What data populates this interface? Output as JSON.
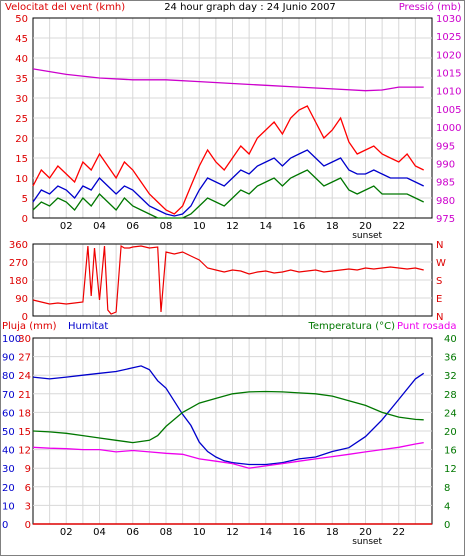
{
  "header": {
    "left_title": "Velocitat del vent (kmh)",
    "center_title": "24 hour graph day : 24 Junio 2007",
    "right_title": "Pressió (mb)"
  },
  "x_axis": {
    "tick_labels": [
      "02",
      "04",
      "06",
      "08",
      "10",
      "12",
      "14",
      "16",
      "18",
      "20",
      "22"
    ],
    "sunset_label": "sunset"
  },
  "colors": {
    "wind_gust": "#ff0000",
    "wind_avg": "#0000cc",
    "wind_min": "#007700",
    "pressure": "#cc00cc",
    "direction": "#ee0000",
    "humidity": "#0000cc",
    "temperature": "#007700",
    "dewpoint": "#ee00ee",
    "rain": "#dd0000",
    "grid": "#d8d8d8",
    "frame": "#000000"
  },
  "chart_data": [
    {
      "type": "line",
      "title": "24 hour graph day : 24 Junio 2007",
      "ylabel": "Velocitat del vent (kmh)",
      "y2label": "Pressió (mb)",
      "x_range": [
        0,
        24
      ],
      "ylim": [
        0,
        50
      ],
      "y_ticks": [
        0,
        5,
        10,
        15,
        20,
        25,
        30,
        35,
        40,
        45,
        50
      ],
      "y2lim": [
        975,
        1030
      ],
      "y2_ticks": [
        975,
        980,
        985,
        990,
        995,
        1000,
        1005,
        1010,
        1015,
        1020,
        1025,
        1030
      ],
      "grid": true,
      "series": [
        {
          "key": "gust",
          "axis": "left",
          "x": [
            0,
            0.5,
            1,
            1.5,
            2,
            2.5,
            3,
            3.5,
            4,
            4.5,
            5,
            5.5,
            6,
            6.5,
            7,
            7.5,
            8,
            8.5,
            9,
            9.5,
            10,
            10.5,
            11,
            11.5,
            12,
            12.5,
            13,
            13.5,
            14,
            14.5,
            15,
            15.5,
            16,
            16.5,
            17,
            17.5,
            18,
            18.5,
            19,
            19.5,
            20,
            20.5,
            21,
            21.5,
            22,
            22.5,
            23,
            23.5
          ],
          "values": [
            8,
            12,
            10,
            13,
            11,
            9,
            14,
            12,
            16,
            13,
            10,
            14,
            12,
            9,
            6,
            4,
            2,
            1,
            3,
            8,
            13,
            17,
            14,
            12,
            15,
            18,
            16,
            20,
            22,
            24,
            21,
            25,
            27,
            28,
            24,
            20,
            22,
            25,
            19,
            16,
            17,
            18,
            16,
            15,
            14,
            16,
            13,
            12
          ]
        },
        {
          "key": "average",
          "axis": "left",
          "x": [
            0,
            0.5,
            1,
            1.5,
            2,
            2.5,
            3,
            3.5,
            4,
            4.5,
            5,
            5.5,
            6,
            6.5,
            7,
            7.5,
            8,
            8.5,
            9,
            9.5,
            10,
            10.5,
            11,
            11.5,
            12,
            12.5,
            13,
            13.5,
            14,
            14.5,
            15,
            15.5,
            16,
            16.5,
            17,
            17.5,
            18,
            18.5,
            19,
            19.5,
            20,
            20.5,
            21,
            21.5,
            22,
            22.5,
            23,
            23.5
          ],
          "values": [
            4,
            7,
            6,
            8,
            7,
            5,
            8,
            7,
            10,
            8,
            6,
            8,
            7,
            5,
            3,
            2,
            1,
            0.5,
            1,
            3,
            7,
            10,
            9,
            8,
            10,
            12,
            11,
            13,
            14,
            15,
            13,
            15,
            16,
            17,
            15,
            13,
            14,
            15,
            12,
            11,
            11,
            12,
            11,
            10,
            10,
            10,
            9,
            8
          ]
        },
        {
          "key": "minimum",
          "axis": "left",
          "x": [
            0,
            0.5,
            1,
            1.5,
            2,
            2.5,
            3,
            3.5,
            4,
            4.5,
            5,
            5.5,
            6,
            6.5,
            7,
            7.5,
            8,
            8.5,
            9,
            9.5,
            10,
            10.5,
            11,
            11.5,
            12,
            12.5,
            13,
            13.5,
            14,
            14.5,
            15,
            15.5,
            16,
            16.5,
            17,
            17.5,
            18,
            18.5,
            19,
            19.5,
            20,
            20.5,
            21,
            21.5,
            22,
            22.5,
            23,
            23.5
          ],
          "values": [
            2,
            4,
            3,
            5,
            4,
            2,
            5,
            3,
            6,
            4,
            2,
            5,
            3,
            2,
            1,
            0,
            0,
            0,
            0,
            1,
            3,
            5,
            4,
            3,
            5,
            7,
            6,
            8,
            9,
            10,
            8,
            10,
            11,
            12,
            10,
            8,
            9,
            10,
            7,
            6,
            7,
            8,
            6,
            6,
            6,
            6,
            5,
            4
          ]
        },
        {
          "key": "pressure",
          "axis": "right",
          "x": [
            0,
            2,
            4,
            6,
            8,
            10,
            12,
            14,
            16,
            18,
            20,
            21,
            22,
            23.5
          ],
          "values": [
            1016,
            1014.5,
            1013.5,
            1013,
            1013,
            1012.5,
            1012,
            1011.5,
            1011,
            1010.5,
            1010,
            1010.2,
            1011,
            1011
          ]
        }
      ],
      "annotations": [
        "sunset"
      ]
    },
    {
      "type": "line",
      "x_range": [
        0,
        24
      ],
      "ylim": [
        0,
        360
      ],
      "y_ticks": [
        0,
        90,
        180,
        270,
        360
      ],
      "y2_labels": [
        "N",
        "W",
        "S",
        "E",
        "N"
      ],
      "series": [
        {
          "key": "direction",
          "x": [
            0,
            0.5,
            1,
            1.5,
            2,
            2.5,
            3,
            3.3,
            3.5,
            3.7,
            4,
            4.3,
            4.5,
            4.7,
            5,
            5.3,
            5.5,
            5.8,
            6,
            6.5,
            7,
            7.5,
            7.7,
            8,
            8.5,
            9,
            9.5,
            10,
            10.5,
            11,
            11.5,
            12,
            12.5,
            13,
            13.5,
            14,
            14.5,
            15,
            15.5,
            16,
            16.5,
            17,
            17.5,
            18,
            18.5,
            19,
            19.5,
            20,
            20.5,
            21,
            21.5,
            22,
            22.5,
            23,
            23.5
          ],
          "values": [
            80,
            70,
            60,
            65,
            60,
            65,
            70,
            350,
            100,
            340,
            80,
            350,
            30,
            10,
            20,
            350,
            340,
            340,
            345,
            350,
            340,
            345,
            20,
            320,
            310,
            320,
            300,
            280,
            240,
            230,
            220,
            230,
            225,
            210,
            220,
            225,
            215,
            220,
            230,
            220,
            225,
            230,
            220,
            225,
            230,
            235,
            230,
            240,
            235,
            240,
            245,
            240,
            235,
            240,
            230
          ]
        }
      ]
    },
    {
      "type": "line",
      "ylabel": "Pluja (mm)",
      "y2label": "Temperatura (°C)",
      "legend": [
        "Humitat",
        "Punt rosada"
      ],
      "x_range": [
        0,
        24
      ],
      "ylim": [
        0,
        100
      ],
      "y_ticks": [
        0,
        10,
        20,
        30,
        40,
        50,
        60,
        70,
        80,
        90,
        100
      ],
      "rain_ticks": [
        0,
        3,
        6,
        9,
        12,
        15,
        18,
        21,
        24,
        27,
        30
      ],
      "y2lim": [
        0,
        40
      ],
      "y2_ticks": [
        0,
        4,
        8,
        12,
        16,
        20,
        24,
        28,
        32,
        36,
        40
      ],
      "grid": true,
      "series": [
        {
          "key": "humidity",
          "axis": "left",
          "x": [
            0,
            1,
            2,
            3,
            4,
            5,
            6,
            6.5,
            7,
            7.5,
            8,
            8.5,
            9,
            9.5,
            10,
            10.5,
            11,
            11.5,
            12,
            13,
            14,
            15,
            16,
            17,
            18,
            18.5,
            19,
            20,
            21,
            22,
            23,
            23.5
          ],
          "values": [
            79,
            78,
            79,
            80,
            81,
            82,
            84,
            85,
            83,
            77,
            73,
            66,
            59,
            53,
            44,
            39,
            36,
            34,
            33,
            32,
            32,
            33,
            35,
            36,
            39,
            40,
            41,
            47,
            56,
            67,
            78,
            81
          ]
        },
        {
          "key": "temperature",
          "axis": "right",
          "x": [
            0,
            1,
            2,
            3,
            4,
            5,
            6,
            7,
            7.5,
            8,
            8.5,
            9,
            9.5,
            10,
            11,
            12,
            13,
            14,
            15,
            16,
            17,
            18,
            19,
            20,
            21,
            22,
            23,
            23.5
          ],
          "values": [
            20,
            19.8,
            19.5,
            19,
            18.5,
            18,
            17.5,
            18,
            19,
            21,
            22.5,
            24,
            25,
            26,
            27,
            28,
            28.4,
            28.5,
            28.4,
            28.2,
            28,
            27.5,
            26.5,
            25.5,
            24,
            23,
            22.5,
            22.4
          ]
        },
        {
          "key": "dewpoint",
          "axis": "right",
          "x": [
            0,
            1,
            2,
            3,
            4,
            5,
            6,
            7,
            8,
            9,
            10,
            11,
            12,
            13,
            14,
            15,
            16,
            17,
            18,
            19,
            20,
            21,
            22,
            23,
            23.5
          ],
          "values": [
            16.5,
            16.3,
            16.2,
            16,
            16,
            15.5,
            15.8,
            15.5,
            15.2,
            15,
            14,
            13.5,
            13,
            12,
            12.5,
            13,
            13.5,
            14,
            14.5,
            15,
            15.5,
            16,
            16.5,
            17.2,
            17.5
          ]
        },
        {
          "key": "rain",
          "axis": "rain",
          "x": [
            0,
            24
          ],
          "values": [
            0,
            0
          ]
        }
      ],
      "annotations": [
        "sunset"
      ]
    }
  ],
  "panel3": {
    "rain_label": "Pluja (mm)",
    "humidity_label": "Humitat",
    "temperature_label": "Temperatura (°C)",
    "dewpoint_label": "Punt rosada"
  }
}
